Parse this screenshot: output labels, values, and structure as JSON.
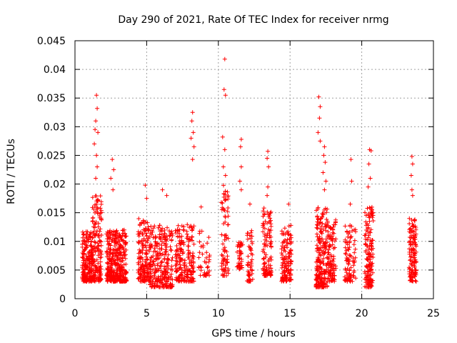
{
  "chart_data": {
    "type": "scatter",
    "title": "Day 290 of 2021, Rate Of TEC Index for receiver nrmg",
    "xlabel": "GPS time / hours",
    "ylabel": "ROTI / TECUs",
    "xlim": [
      0,
      25
    ],
    "ylim": [
      0,
      0.045
    ],
    "x_ticks": [
      0,
      5,
      10,
      15,
      20,
      25
    ],
    "x_tick_labels": [
      "0",
      "5",
      "10",
      "15",
      "20",
      "25"
    ],
    "y_ticks": [
      0,
      0.005,
      0.01,
      0.015,
      0.02,
      0.025,
      0.03,
      0.035,
      0.04,
      0.045
    ],
    "y_tick_labels": [
      "0",
      "0.005",
      "0.01",
      "0.015",
      "0.02",
      "0.025",
      "0.03",
      "0.035",
      "0.04",
      "0.045"
    ],
    "grid": true,
    "marker": "+",
    "series": [
      {
        "name": "ROTI",
        "color": "#ff0000",
        "clusters": [
          {
            "x_start": 0.5,
            "x_end": 1.2,
            "y_min": 0.003,
            "y_max": 0.012,
            "count": 200
          },
          {
            "x_start": 1.2,
            "x_end": 1.85,
            "y_min": 0.003,
            "y_max": 0.018,
            "count": 160
          },
          {
            "x_start": 2.2,
            "x_end": 3.6,
            "y_min": 0.003,
            "y_max": 0.012,
            "count": 360
          },
          {
            "x_start": 4.4,
            "x_end": 5.1,
            "y_min": 0.003,
            "y_max": 0.014,
            "count": 140
          },
          {
            "x_start": 5.1,
            "x_end": 6.8,
            "y_min": 0.002,
            "y_max": 0.013,
            "count": 280
          },
          {
            "x_start": 7.0,
            "x_end": 8.3,
            "y_min": 0.003,
            "y_max": 0.013,
            "count": 200
          },
          {
            "x_start": 8.6,
            "x_end": 9.4,
            "y_min": 0.004,
            "y_max": 0.012,
            "count": 40
          },
          {
            "x_start": 10.2,
            "x_end": 10.7,
            "y_min": 0.004,
            "y_max": 0.02,
            "count": 80
          },
          {
            "x_start": 11.3,
            "x_end": 11.7,
            "y_min": 0.005,
            "y_max": 0.01,
            "count": 40
          },
          {
            "x_start": 12.0,
            "x_end": 12.4,
            "y_min": 0.003,
            "y_max": 0.012,
            "count": 50
          },
          {
            "x_start": 13.1,
            "x_end": 13.7,
            "y_min": 0.004,
            "y_max": 0.016,
            "count": 110
          },
          {
            "x_start": 14.4,
            "x_end": 15.1,
            "y_min": 0.003,
            "y_max": 0.013,
            "count": 130
          },
          {
            "x_start": 16.8,
            "x_end": 17.6,
            "y_min": 0.002,
            "y_max": 0.016,
            "count": 220
          },
          {
            "x_start": 17.6,
            "x_end": 18.2,
            "y_min": 0.003,
            "y_max": 0.014,
            "count": 100
          },
          {
            "x_start": 18.8,
            "x_end": 19.6,
            "y_min": 0.003,
            "y_max": 0.013,
            "count": 90
          },
          {
            "x_start": 20.2,
            "x_end": 20.8,
            "y_min": 0.002,
            "y_max": 0.016,
            "count": 150
          },
          {
            "x_start": 23.3,
            "x_end": 23.8,
            "y_min": 0.003,
            "y_max": 0.014,
            "count": 130
          }
        ],
        "outliers": [
          [
            1.5,
            0.0355
          ],
          [
            1.55,
            0.0332
          ],
          [
            1.45,
            0.031
          ],
          [
            1.4,
            0.0295
          ],
          [
            1.6,
            0.029
          ],
          [
            1.35,
            0.027
          ],
          [
            1.5,
            0.025
          ],
          [
            1.55,
            0.023
          ],
          [
            1.45,
            0.021
          ],
          [
            2.6,
            0.0243
          ],
          [
            2.7,
            0.0225
          ],
          [
            2.5,
            0.021
          ],
          [
            2.65,
            0.019
          ],
          [
            4.9,
            0.0198
          ],
          [
            5.0,
            0.0175
          ],
          [
            6.1,
            0.019
          ],
          [
            6.4,
            0.018
          ],
          [
            8.2,
            0.0325
          ],
          [
            8.15,
            0.031
          ],
          [
            8.25,
            0.029
          ],
          [
            8.1,
            0.028
          ],
          [
            8.3,
            0.0265
          ],
          [
            8.2,
            0.0243
          ],
          [
            8.8,
            0.016
          ],
          [
            10.45,
            0.0418
          ],
          [
            10.4,
            0.0365
          ],
          [
            10.5,
            0.0355
          ],
          [
            10.3,
            0.0282
          ],
          [
            10.45,
            0.026
          ],
          [
            10.35,
            0.023
          ],
          [
            10.5,
            0.0215
          ],
          [
            11.6,
            0.0278
          ],
          [
            11.55,
            0.0265
          ],
          [
            11.6,
            0.023
          ],
          [
            11.5,
            0.0205
          ],
          [
            11.6,
            0.019
          ],
          [
            12.2,
            0.0165
          ],
          [
            13.45,
            0.0257
          ],
          [
            13.4,
            0.0245
          ],
          [
            13.5,
            0.023
          ],
          [
            13.45,
            0.0195
          ],
          [
            13.4,
            0.018
          ],
          [
            14.9,
            0.0165
          ],
          [
            17.0,
            0.0352
          ],
          [
            17.1,
            0.0335
          ],
          [
            17.05,
            0.0315
          ],
          [
            16.95,
            0.029
          ],
          [
            17.1,
            0.0275
          ],
          [
            17.4,
            0.0265
          ],
          [
            17.35,
            0.025
          ],
          [
            17.45,
            0.0238
          ],
          [
            17.3,
            0.022
          ],
          [
            17.5,
            0.0205
          ],
          [
            17.4,
            0.019
          ],
          [
            19.25,
            0.0243
          ],
          [
            19.3,
            0.0205
          ],
          [
            19.2,
            0.0165
          ],
          [
            20.55,
            0.026
          ],
          [
            20.65,
            0.0258
          ],
          [
            20.5,
            0.0235
          ],
          [
            20.6,
            0.021
          ],
          [
            20.45,
            0.0195
          ],
          [
            23.5,
            0.0248
          ],
          [
            23.55,
            0.0235
          ],
          [
            23.45,
            0.0215
          ],
          [
            23.5,
            0.019
          ],
          [
            23.55,
            0.018
          ]
        ]
      }
    ]
  }
}
